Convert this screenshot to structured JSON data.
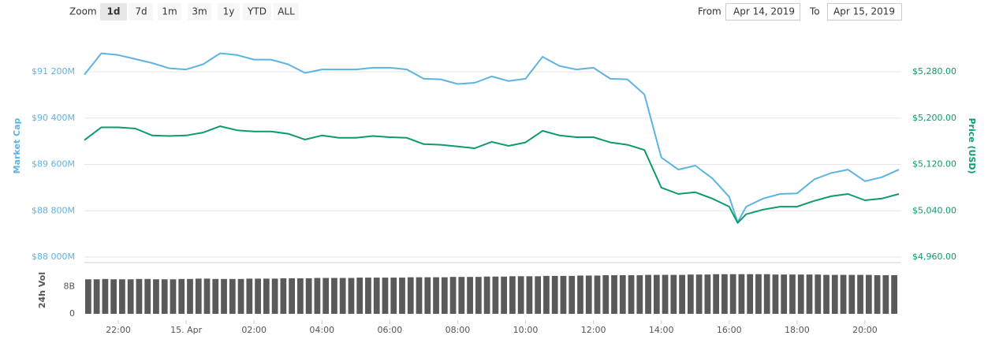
{
  "toolbar": {
    "zoom_label": "Zoom",
    "ranges": [
      "1d",
      "7d",
      "1m",
      "3m",
      "1y",
      "YTD",
      "ALL"
    ],
    "selected": 0,
    "from_label": "From",
    "from": "Apr 14, 2019",
    "to_label": "To",
    "to": "Apr 15, 2019"
  },
  "chart_data": {
    "type": "line",
    "x": [
      21,
      21.5,
      22,
      22.5,
      23,
      23.5,
      24,
      24.5,
      25,
      25.5,
      26,
      26.5,
      27,
      27.5,
      28,
      28.5,
      29,
      29.5,
      30,
      30.5,
      31,
      31.5,
      32,
      32.5,
      33,
      33.5,
      34,
      34.5,
      35,
      35.5,
      36,
      36.5,
      37,
      37.5,
      38,
      38.5,
      39,
      39.5,
      40,
      40.25,
      40.5,
      41,
      41.5,
      42,
      42.5,
      43,
      43.5,
      44,
      44.5,
      45
    ],
    "xlim": [
      21,
      45.07
    ],
    "xticks": [
      {
        "value": 22,
        "label": "22:00"
      },
      {
        "value": 24,
        "label": "15. Apr"
      },
      {
        "value": 26,
        "label": "02:00"
      },
      {
        "value": 28,
        "label": "04:00"
      },
      {
        "value": 30,
        "label": "06:00"
      },
      {
        "value": 32,
        "label": "08:00"
      },
      {
        "value": 34,
        "label": "10:00"
      },
      {
        "value": 36,
        "label": "12:00"
      },
      {
        "value": 38,
        "label": "14:00"
      },
      {
        "value": 40,
        "label": "16:00"
      },
      {
        "value": 42,
        "label": "18:00"
      },
      {
        "value": 44,
        "label": "20:00"
      }
    ],
    "ylim": [
      88000,
      91800
    ],
    "yticks": [
      {
        "value": 88000,
        "label": "$88 000M"
      },
      {
        "value": 88800,
        "label": "$88 800M"
      },
      {
        "value": 89600,
        "label": "$89 600M"
      },
      {
        "value": 90400,
        "label": "$90 400M"
      },
      {
        "value": 91200,
        "label": "$91 200M"
      }
    ],
    "y2lim": [
      4960,
      5340
    ],
    "y2ticks": [
      {
        "value": 4960,
        "label": "$4,960.00"
      },
      {
        "value": 5040,
        "label": "$5,040.00"
      },
      {
        "value": 5120,
        "label": "$5,120.00"
      },
      {
        "value": 5200,
        "label": "$5,200.00"
      },
      {
        "value": 5280,
        "label": "$5,280.00"
      }
    ],
    "grid": true,
    "series": [
      {
        "name": "Market Cap",
        "color": "#5db3e2",
        "values": [
          91150,
          91520,
          91490,
          91420,
          91350,
          91260,
          91240,
          91330,
          91520,
          91490,
          91410,
          91410,
          91330,
          91180,
          91240,
          91240,
          91240,
          91270,
          91270,
          91240,
          91080,
          91070,
          90990,
          91010,
          91120,
          91040,
          91080,
          91460,
          91300,
          91240,
          91270,
          91080,
          91070,
          90810,
          89720,
          89510,
          89580,
          89360,
          89040,
          88600,
          88870,
          89010,
          89090,
          89100,
          89340,
          89450,
          89510,
          89310,
          89380,
          89510
        ]
      },
      {
        "name": "Price (USD)",
        "color": "#0d9a6c",
        "axis": "y2",
        "values": [
          5162,
          5184,
          5184,
          5182,
          5170,
          5169,
          5170,
          5175,
          5186,
          5179,
          5177,
          5177,
          5173,
          5163,
          5170,
          5166,
          5166,
          5169,
          5167,
          5166,
          5155,
          5154,
          5151,
          5148,
          5159,
          5152,
          5158,
          5178,
          5170,
          5167,
          5167,
          5158,
          5154,
          5145,
          5080,
          5069,
          5072,
          5061,
          5047,
          5019,
          5034,
          5042,
          5047,
          5047,
          5057,
          5065,
          5069,
          5058,
          5061,
          5069
        ]
      }
    ],
    "volume": {
      "type": "bar",
      "name": "24h Vol",
      "color": "#5a5a5a",
      "x": [
        21,
        21.25,
        21.5,
        21.75,
        22,
        22.25,
        22.5,
        22.75,
        23,
        23.25,
        23.5,
        23.75,
        24,
        24.25,
        24.5,
        24.75,
        25,
        25.25,
        25.5,
        25.75,
        26,
        26.25,
        26.5,
        26.75,
        27,
        27.25,
        27.5,
        27.75,
        28,
        28.25,
        28.5,
        28.75,
        29,
        29.25,
        29.5,
        29.75,
        30,
        30.25,
        30.5,
        30.75,
        31,
        31.25,
        31.5,
        31.75,
        32,
        32.25,
        32.5,
        32.75,
        33,
        33.25,
        33.5,
        33.75,
        34,
        34.25,
        34.5,
        34.75,
        35,
        35.25,
        35.5,
        35.75,
        36,
        36.25,
        36.5,
        36.75,
        37,
        37.25,
        37.5,
        37.75,
        38,
        38.25,
        38.5,
        38.75,
        39,
        39.25,
        39.5,
        39.75,
        40,
        40.25,
        40.5,
        40.75,
        41,
        41.25,
        41.5,
        41.75,
        42,
        42.25,
        42.5,
        42.75,
        43,
        43.25,
        43.5,
        43.75,
        44,
        44.25,
        44.5,
        44.75
      ],
      "values": [
        10.1,
        10.1,
        10.2,
        10.1,
        10.1,
        10.1,
        10.2,
        10.2,
        10.1,
        10.1,
        10.1,
        10.2,
        10.2,
        10.3,
        10.3,
        10.2,
        10.2,
        10.2,
        10.2,
        10.3,
        10.3,
        10.3,
        10.3,
        10.4,
        10.4,
        10.4,
        10.4,
        10.5,
        10.5,
        10.5,
        10.5,
        10.5,
        10.6,
        10.6,
        10.6,
        10.6,
        10.6,
        10.6,
        10.7,
        10.7,
        10.7,
        10.7,
        10.7,
        10.8,
        10.8,
        10.8,
        10.8,
        10.9,
        10.9,
        10.9,
        11.0,
        11.0,
        11.0,
        11.0,
        11.1,
        11.1,
        11.1,
        11.1,
        11.2,
        11.2,
        11.2,
        11.3,
        11.3,
        11.3,
        11.3,
        11.3,
        11.4,
        11.4,
        11.4,
        11.4,
        11.4,
        11.5,
        11.5,
        11.5,
        11.6,
        11.6,
        11.6,
        11.6,
        11.6,
        11.6,
        11.6,
        11.5,
        11.5,
        11.5,
        11.5,
        11.5,
        11.5,
        11.4,
        11.4,
        11.4,
        11.4,
        11.4,
        11.4,
        11.3,
        11.3,
        11.3
      ],
      "ylim": [
        0,
        15
      ],
      "yticks": [
        0,
        {
          "value": 8,
          "label": "8B"
        }
      ]
    }
  }
}
